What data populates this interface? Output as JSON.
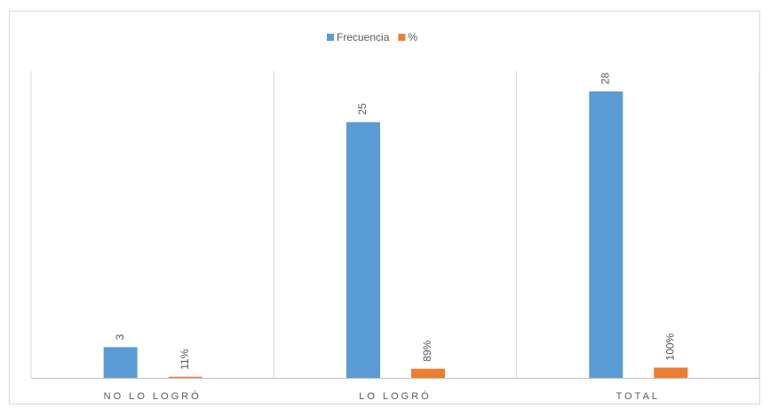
{
  "chart_data": {
    "type": "bar",
    "categories": [
      "NO LO LOGRÓ",
      "LO LOGRÓ",
      "TOTAL"
    ],
    "series": [
      {
        "name": "Frecuencia",
        "color": "#5b9bd5",
        "values": [
          3,
          25,
          28
        ]
      },
      {
        "name": "%",
        "color": "#ed7d31",
        "values": [
          0.11,
          0.89,
          1.0
        ],
        "value_labels": [
          "11%",
          "89%",
          "100%"
        ]
      }
    ],
    "ylim": [
      0,
      30
    ],
    "legend": "top"
  }
}
